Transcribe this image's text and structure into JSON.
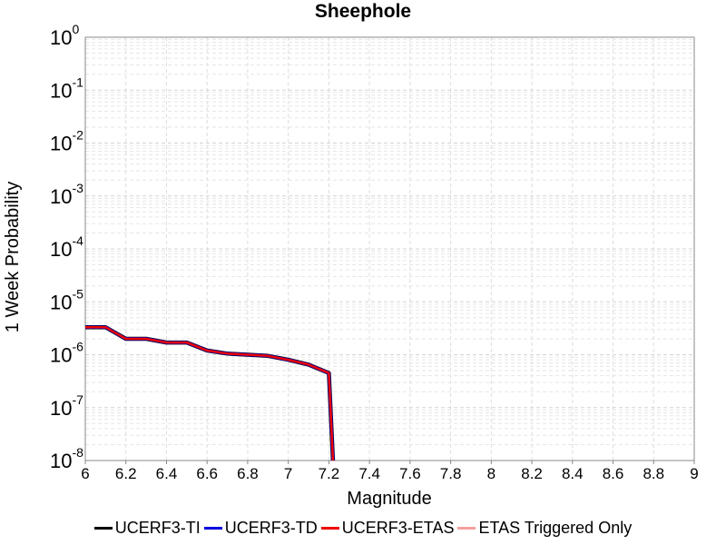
{
  "chart_data": {
    "type": "line",
    "title": "Sheephole",
    "xlabel": "Magnitude",
    "ylabel": "1 Week Probability",
    "xlim": [
      6,
      9
    ],
    "ylim": [
      1e-08,
      1
    ],
    "yscale": "log",
    "grid": true,
    "legend_position": "bottom",
    "x_ticks": [
      "6",
      "6.2",
      "6.4",
      "6.6",
      "6.8",
      "7",
      "7.2",
      "7.4",
      "7.6",
      "7.8",
      "8",
      "8.2",
      "8.4",
      "8.6",
      "8.8",
      "9"
    ],
    "y_ticks": [
      {
        "base": "10",
        "exp": "0"
      },
      {
        "base": "10",
        "exp": "-1"
      },
      {
        "base": "10",
        "exp": "-2"
      },
      {
        "base": "10",
        "exp": "-3"
      },
      {
        "base": "10",
        "exp": "-4"
      },
      {
        "base": "10",
        "exp": "-5"
      },
      {
        "base": "10",
        "exp": "-6"
      },
      {
        "base": "10",
        "exp": "-7"
      },
      {
        "base": "10",
        "exp": "-8"
      }
    ],
    "series": [
      {
        "name": "UCERF3-TI",
        "color": "#000000",
        "x": [
          6.0,
          6.1,
          6.2,
          6.3,
          6.4,
          6.5,
          6.6,
          6.7,
          6.8,
          6.9,
          7.0,
          7.1,
          7.2,
          7.22
        ],
        "y": [
          3.3e-06,
          3.3e-06,
          2e-06,
          2e-06,
          1.7e-06,
          1.7e-06,
          1.2e-06,
          1.05e-06,
          1e-06,
          9.5e-07,
          8e-07,
          6.5e-07,
          4.5e-07,
          1e-08
        ]
      },
      {
        "name": "UCERF3-TD",
        "color": "#0000dd",
        "x": [
          6.0,
          6.1,
          6.2,
          6.3,
          6.4,
          6.5,
          6.6,
          6.7,
          6.8,
          6.9,
          7.0,
          7.1,
          7.2,
          7.22
        ],
        "y": [
          3.3e-06,
          3.3e-06,
          2e-06,
          2e-06,
          1.7e-06,
          1.7e-06,
          1.2e-06,
          1.05e-06,
          1e-06,
          9.5e-07,
          8e-07,
          6.5e-07,
          4.5e-07,
          1e-08
        ]
      },
      {
        "name": "UCERF3-ETAS",
        "color": "#ee0000",
        "x": [
          6.0,
          6.1,
          6.2,
          6.3,
          6.4,
          6.5,
          6.6,
          6.7,
          6.8,
          6.9,
          7.0,
          7.1,
          7.2,
          7.22
        ],
        "y": [
          3.3e-06,
          3.3e-06,
          2e-06,
          2e-06,
          1.7e-06,
          1.7e-06,
          1.2e-06,
          1.05e-06,
          1e-06,
          9.5e-07,
          8e-07,
          6.5e-07,
          4.5e-07,
          1e-08
        ]
      },
      {
        "name": "ETAS Triggered Only",
        "color": "#f4a0a0",
        "x": [],
        "y": []
      }
    ]
  }
}
